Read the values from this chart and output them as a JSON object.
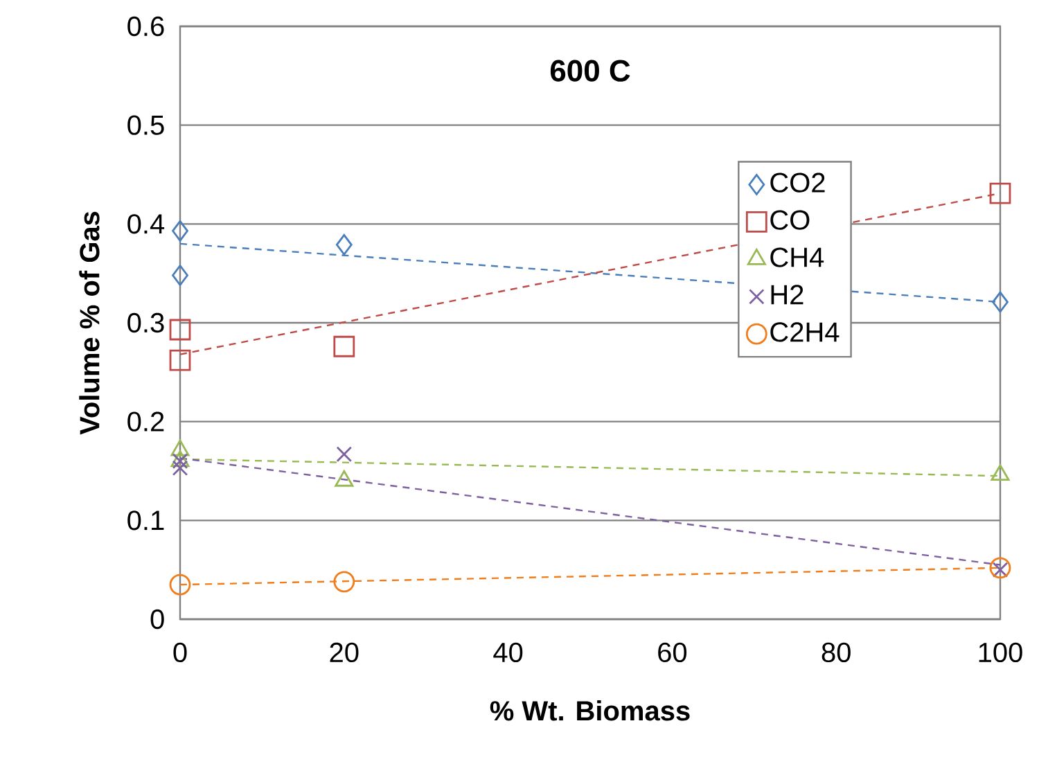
{
  "chart_data": {
    "type": "scatter",
    "title": "600 C",
    "xlabel": "% Wt. Biomass",
    "ylabel": "Volume % of Gas",
    "xlim": [
      0,
      100
    ],
    "ylim": [
      0,
      0.6
    ],
    "xticks": [
      0,
      20,
      40,
      60,
      80,
      100
    ],
    "yticks": [
      0,
      0.1,
      0.2,
      0.3,
      0.4,
      0.5,
      0.6
    ],
    "grid": "y",
    "legend": "right",
    "series": [
      {
        "name": "CO2",
        "marker": "diamond",
        "color": "#4a7ebb",
        "x": [
          0,
          0,
          20,
          100
        ],
        "values": [
          0.393,
          0.348,
          0.379,
          0.321
        ]
      },
      {
        "name": "CO",
        "marker": "square",
        "color": "#be4b48",
        "x": [
          0,
          0,
          20,
          100
        ],
        "values": [
          0.293,
          0.262,
          0.276,
          0.431
        ]
      },
      {
        "name": "CH4",
        "marker": "triangle",
        "color": "#98b954",
        "x": [
          0,
          0,
          20,
          100
        ],
        "values": [
          0.171,
          0.16,
          0.14,
          0.146
        ]
      },
      {
        "name": "H2",
        "marker": "cross",
        "color": "#7d60a0",
        "x": [
          0,
          0,
          20,
          100
        ],
        "values": [
          0.16,
          0.153,
          0.167,
          0.05
        ]
      },
      {
        "name": "C2H4",
        "marker": "circle",
        "color": "#f07c1a",
        "x": [
          0,
          20,
          100
        ],
        "values": [
          0.035,
          0.038,
          0.052
        ]
      },
      {
        "type": "line",
        "line_style": "dashed",
        "color": "#4a7ebb",
        "x": [
          0,
          100
        ],
        "values": [
          0.38,
          0.321
        ]
      },
      {
        "type": "line",
        "line_style": "dashed",
        "color": "#be4b48",
        "x": [
          0,
          100
        ],
        "values": [
          0.268,
          0.431
        ]
      },
      {
        "type": "line",
        "line_style": "dashed",
        "color": "#98b954",
        "x": [
          0,
          100
        ],
        "values": [
          0.162,
          0.145
        ]
      },
      {
        "type": "line",
        "line_style": "dashed",
        "color": "#7d60a0",
        "x": [
          0,
          100
        ],
        "values": [
          0.163,
          0.055
        ]
      },
      {
        "type": "line",
        "line_style": "dashed",
        "color": "#f07c1a",
        "x": [
          0,
          100
        ],
        "values": [
          0.035,
          0.052
        ]
      }
    ]
  }
}
